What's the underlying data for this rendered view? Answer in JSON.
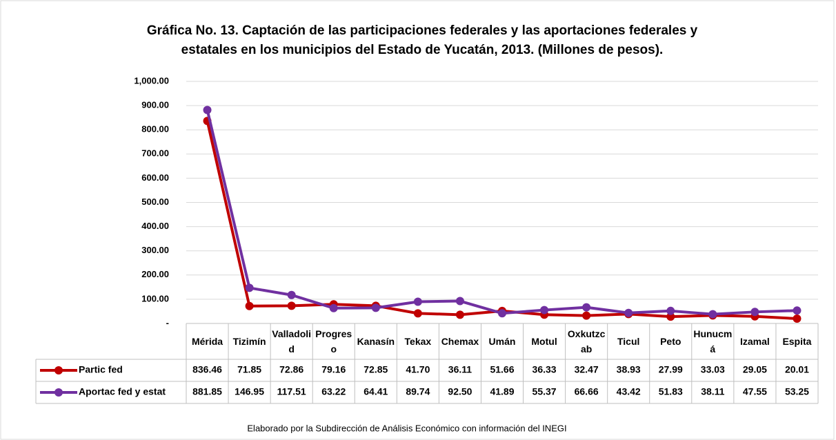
{
  "chart_data": {
    "type": "line",
    "title": "Gráfica No. 13. Captación de las participaciones federales y las aportaciones federales y",
    "subtitle": "estatales en los municipios del Estado de Yucatán, 2013. (Millones de pesos).",
    "note": "Elaborado por la Subdirección de Análisis Económico con información del INEGI",
    "categories": [
      "Mérida",
      "Tizimín",
      "Valladolid",
      "Progreso",
      "Kanasín",
      "Tekax",
      "Chemax",
      "Umán",
      "Motul",
      "Oxkutzcab",
      "Ticul",
      "Peto",
      "Hunucmá",
      "Izamal",
      "Espita"
    ],
    "series": [
      {
        "name": "Partic fed",
        "color": "#c00000",
        "values": [
          836.46,
          71.85,
          72.86,
          79.16,
          72.85,
          41.7,
          36.11,
          51.66,
          36.33,
          32.47,
          38.93,
          27.99,
          33.03,
          29.05,
          20.01
        ],
        "value_labels": [
          "836.46",
          "71.85",
          "72.86",
          "79.16",
          "72.85",
          "41.70",
          "36.11",
          "51.66",
          "36.33",
          "32.47",
          "38.93",
          "27.99",
          "33.03",
          "29.05",
          "20.01"
        ]
      },
      {
        "name": "Aportac fed y estat",
        "color": "#7030a0",
        "values": [
          881.85,
          146.95,
          117.51,
          63.22,
          64.41,
          89.74,
          92.5,
          41.89,
          55.37,
          66.66,
          43.42,
          51.83,
          38.11,
          47.55,
          53.25
        ],
        "value_labels": [
          "881.85",
          "146.95",
          "117.51",
          "63.22",
          "64.41",
          "89.74",
          "92.50",
          "41.89",
          "55.37",
          "66.66",
          "43.42",
          "51.83",
          "38.11",
          "47.55",
          "53.25"
        ]
      }
    ],
    "ylim": [
      0,
      1000
    ],
    "yticks": [
      {
        "value": 0,
        "label": "-"
      },
      {
        "value": 100,
        "label": "100.00"
      },
      {
        "value": 200,
        "label": "200.00"
      },
      {
        "value": 300,
        "label": "300.00"
      },
      {
        "value": 400,
        "label": "400.00"
      },
      {
        "value": 500,
        "label": "500.00"
      },
      {
        "value": 600,
        "label": "600.00"
      },
      {
        "value": 700,
        "label": "700.00"
      },
      {
        "value": 800,
        "label": "800.00"
      },
      {
        "value": 900,
        "label": "900.00"
      },
      {
        "value": 1000,
        "label": "1,000.00"
      }
    ],
    "grid": true
  }
}
